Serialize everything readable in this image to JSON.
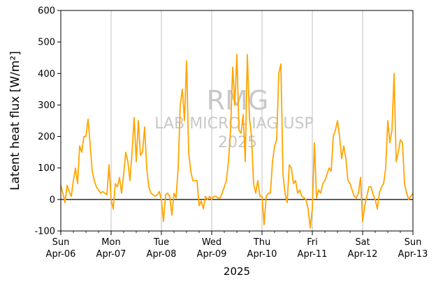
{
  "chart_data": {
    "type": "line",
    "xlabel": "2025",
    "ylabel_main": "Latent heat flux ",
    "ylabel_unit": "[W/m²]",
    "ylim": [
      -100,
      600
    ],
    "yticks": [
      -100,
      0,
      100,
      200,
      300,
      400,
      500,
      600
    ],
    "xlim": [
      "2025-04-06T00:00",
      "2025-04-13T00:00"
    ],
    "x_tick_labels": [
      {
        "date": "2025-04-06",
        "day": "Sun",
        "label": "Apr-06"
      },
      {
        "date": "2025-04-07",
        "day": "Mon",
        "label": "Apr-07"
      },
      {
        "date": "2025-04-08",
        "day": "Tue",
        "label": "Apr-08"
      },
      {
        "date": "2025-04-09",
        "day": "Wed",
        "label": "Apr-09"
      },
      {
        "date": "2025-04-10",
        "day": "Thu",
        "label": "Apr-10"
      },
      {
        "date": "2025-04-11",
        "day": "Fri",
        "label": "Apr-11"
      },
      {
        "date": "2025-04-12",
        "day": "Sat",
        "label": "Apr-12"
      },
      {
        "date": "2025-04-13",
        "day": "Sun",
        "label": "Apr-13"
      }
    ],
    "grid": "vertical at day boundaries",
    "zero_line": true,
    "line_color": "#FFA500",
    "watermark": [
      "RMG",
      "LAB MICRO- IAG USP",
      "2025"
    ],
    "series": [
      {
        "x": [
          "2025-04-06T00:00",
          "2025-04-06T01:00",
          "2025-04-06T02:00",
          "2025-04-06T03:00",
          "2025-04-06T04:00",
          "2025-04-06T05:00",
          "2025-04-06T06:00",
          "2025-04-06T07:00",
          "2025-04-06T08:00",
          "2025-04-06T09:00",
          "2025-04-06T10:00",
          "2025-04-06T11:00",
          "2025-04-06T12:00",
          "2025-04-06T13:00",
          "2025-04-06T14:00",
          "2025-04-06T15:00",
          "2025-04-06T16:00",
          "2025-04-06T17:00",
          "2025-04-06T18:00",
          "2025-04-06T19:00",
          "2025-04-06T20:00",
          "2025-04-06T21:00",
          "2025-04-06T22:00",
          "2025-04-06T23:00",
          "2025-04-07T00:00",
          "2025-04-07T01:00",
          "2025-04-07T02:00",
          "2025-04-07T03:00",
          "2025-04-07T04:00",
          "2025-04-07T05:00",
          "2025-04-07T06:00",
          "2025-04-07T07:00",
          "2025-04-07T08:00",
          "2025-04-07T09:00",
          "2025-04-07T10:00",
          "2025-04-07T11:00",
          "2025-04-07T12:00",
          "2025-04-07T13:00",
          "2025-04-07T14:00",
          "2025-04-07T15:00",
          "2025-04-07T16:00",
          "2025-04-07T17:00",
          "2025-04-07T18:00",
          "2025-04-07T19:00",
          "2025-04-07T20:00",
          "2025-04-07T21:00",
          "2025-04-07T22:00",
          "2025-04-07T23:00",
          "2025-04-08T00:00",
          "2025-04-08T01:00",
          "2025-04-08T02:00",
          "2025-04-08T03:00",
          "2025-04-08T04:00",
          "2025-04-08T05:00",
          "2025-04-08T06:00",
          "2025-04-08T07:00",
          "2025-04-08T08:00",
          "2025-04-08T09:00",
          "2025-04-08T10:00",
          "2025-04-08T11:00",
          "2025-04-08T12:00",
          "2025-04-08T13:00",
          "2025-04-08T14:00",
          "2025-04-08T15:00",
          "2025-04-08T16:00",
          "2025-04-08T17:00",
          "2025-04-08T18:00",
          "2025-04-08T19:00",
          "2025-04-08T20:00",
          "2025-04-08T21:00",
          "2025-04-08T22:00",
          "2025-04-08T23:00",
          "2025-04-09T00:00",
          "2025-04-09T01:00",
          "2025-04-09T02:00",
          "2025-04-09T03:00",
          "2025-04-09T04:00",
          "2025-04-09T05:00",
          "2025-04-09T06:00",
          "2025-04-09T07:00",
          "2025-04-09T08:00",
          "2025-04-09T09:00",
          "2025-04-09T10:00",
          "2025-04-09T11:00",
          "2025-04-09T12:00",
          "2025-04-09T13:00",
          "2025-04-09T14:00",
          "2025-04-09T15:00",
          "2025-04-09T16:00",
          "2025-04-09T17:00",
          "2025-04-09T18:00",
          "2025-04-09T19:00",
          "2025-04-09T20:00",
          "2025-04-09T21:00",
          "2025-04-09T22:00",
          "2025-04-09T23:00",
          "2025-04-10T00:00",
          "2025-04-10T01:00",
          "2025-04-10T02:00",
          "2025-04-10T03:00",
          "2025-04-10T04:00",
          "2025-04-10T05:00",
          "2025-04-10T06:00",
          "2025-04-10T07:00",
          "2025-04-10T08:00",
          "2025-04-10T09:00",
          "2025-04-10T10:00",
          "2025-04-10T11:00",
          "2025-04-10T12:00",
          "2025-04-10T13:00",
          "2025-04-10T14:00",
          "2025-04-10T15:00",
          "2025-04-10T16:00",
          "2025-04-10T17:00",
          "2025-04-10T18:00",
          "2025-04-10T19:00",
          "2025-04-10T20:00",
          "2025-04-10T21:00",
          "2025-04-10T22:00",
          "2025-04-10T23:00",
          "2025-04-11T00:00",
          "2025-04-11T01:00",
          "2025-04-11T02:00",
          "2025-04-11T03:00",
          "2025-04-11T04:00",
          "2025-04-11T05:00",
          "2025-04-11T06:00",
          "2025-04-11T07:00",
          "2025-04-11T08:00",
          "2025-04-11T09:00",
          "2025-04-11T10:00",
          "2025-04-11T11:00",
          "2025-04-11T12:00",
          "2025-04-11T13:00",
          "2025-04-11T14:00",
          "2025-04-11T15:00",
          "2025-04-11T16:00",
          "2025-04-11T17:00",
          "2025-04-11T18:00",
          "2025-04-11T19:00",
          "2025-04-11T20:00",
          "2025-04-11T21:00",
          "2025-04-11T22:00",
          "2025-04-11T23:00",
          "2025-04-12T00:00",
          "2025-04-12T01:00",
          "2025-04-12T02:00",
          "2025-04-12T03:00",
          "2025-04-12T04:00",
          "2025-04-12T05:00",
          "2025-04-12T06:00",
          "2025-04-12T07:00",
          "2025-04-12T08:00",
          "2025-04-12T09:00",
          "2025-04-12T10:00",
          "2025-04-12T11:00",
          "2025-04-12T12:00",
          "2025-04-12T13:00",
          "2025-04-12T14:00",
          "2025-04-12T15:00",
          "2025-04-12T16:00",
          "2025-04-12T17:00",
          "2025-04-12T18:00",
          "2025-04-12T19:00",
          "2025-04-12T20:00",
          "2025-04-12T21:00",
          "2025-04-12T22:00",
          "2025-04-12T23:00",
          "2025-04-13T00:00"
        ],
        "y": [
          45,
          20,
          -10,
          45,
          25,
          10,
          60,
          100,
          50,
          170,
          150,
          200,
          200,
          255,
          175,
          90,
          60,
          40,
          30,
          20,
          25,
          20,
          15,
          110,
          0,
          -30,
          50,
          40,
          70,
          20,
          80,
          150,
          120,
          60,
          150,
          260,
          120,
          250,
          140,
          150,
          230,
          100,
          40,
          20,
          15,
          10,
          15,
          25,
          0,
          -70,
          15,
          20,
          10,
          -50,
          20,
          5,
          100,
          300,
          350,
          250,
          440,
          150,
          90,
          60,
          60,
          60,
          -20,
          -5,
          -30,
          10,
          0,
          10,
          0,
          10,
          10,
          5,
          5,
          20,
          40,
          60,
          120,
          220,
          420,
          300,
          460,
          220,
          210,
          270,
          120,
          460,
          260,
          200,
          50,
          20,
          60,
          10,
          10,
          -80,
          10,
          20,
          20,
          120,
          170,
          190,
          400,
          430,
          80,
          20,
          -10,
          110,
          100,
          50,
          60,
          20,
          30,
          10,
          5,
          0,
          -30,
          -90,
          -30,
          180,
          5,
          30,
          20,
          50,
          60,
          80,
          100,
          90,
          200,
          220,
          250,
          200,
          130,
          170,
          130,
          60,
          50,
          30,
          10,
          5,
          20,
          70,
          -70,
          -20,
          10,
          40,
          40,
          15,
          0,
          -30,
          20,
          40,
          50,
          100,
          250,
          180,
          220,
          400,
          120,
          150,
          190,
          180,
          50,
          20,
          0,
          10,
          20
        ]
      }
    ]
  }
}
